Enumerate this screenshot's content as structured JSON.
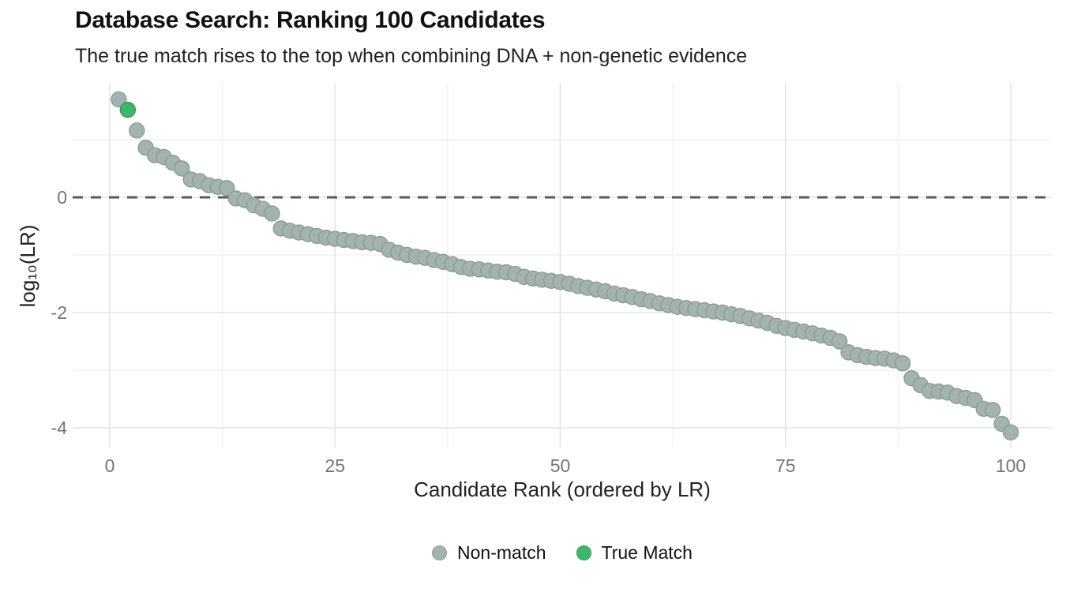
{
  "chart_data": {
    "type": "scatter",
    "title": "Database Search: Ranking 100 Candidates",
    "subtitle": "The true match rises to the top when combining DNA + non-genetic evidence",
    "xlabel": "Candidate Rank (ordered by LR)",
    "ylabel": "log₁₀(LR)",
    "x_tick_labels": [
      "0",
      "25",
      "50",
      "75",
      "100"
    ],
    "x_ticks": [
      0,
      25,
      50,
      75,
      100
    ],
    "x_minor_ticks": [
      12.5,
      37.5,
      62.5,
      87.5
    ],
    "y_tick_labels": [
      "0",
      "-2",
      "-4"
    ],
    "y_ticks": [
      0,
      -2,
      -4
    ],
    "y_minor_ticks": [
      1,
      -1,
      -3
    ],
    "xlim": [
      -4.1,
      104.6
    ],
    "ylim": [
      -4.34,
      1.99
    ],
    "grid": true,
    "reference_line_y": 0,
    "x_is_candidate_rank_1_to_100": true,
    "values": [
      1.7,
      1.52,
      1.16,
      0.86,
      0.73,
      0.7,
      0.6,
      0.5,
      0.31,
      0.28,
      0.21,
      0.18,
      0.16,
      -0.02,
      -0.05,
      -0.14,
      -0.2,
      -0.28,
      -0.54,
      -0.58,
      -0.61,
      -0.64,
      -0.67,
      -0.7,
      -0.72,
      -0.74,
      -0.76,
      -0.78,
      -0.79,
      -0.81,
      -0.91,
      -0.96,
      -1.0,
      -1.03,
      -1.05,
      -1.09,
      -1.12,
      -1.16,
      -1.21,
      -1.24,
      -1.25,
      -1.27,
      -1.29,
      -1.3,
      -1.33,
      -1.38,
      -1.41,
      -1.43,
      -1.45,
      -1.47,
      -1.5,
      -1.54,
      -1.57,
      -1.6,
      -1.63,
      -1.67,
      -1.7,
      -1.73,
      -1.77,
      -1.8,
      -1.84,
      -1.87,
      -1.9,
      -1.92,
      -1.94,
      -1.96,
      -1.98,
      -2.0,
      -2.03,
      -2.06,
      -2.1,
      -2.14,
      -2.18,
      -2.23,
      -2.27,
      -2.3,
      -2.33,
      -2.36,
      -2.4,
      -2.44,
      -2.5,
      -2.69,
      -2.74,
      -2.77,
      -2.79,
      -2.8,
      -2.83,
      -2.88,
      -3.14,
      -3.26,
      -3.36,
      -3.37,
      -3.39,
      -3.45,
      -3.48,
      -3.52,
      -3.67,
      -3.69,
      -3.93,
      -4.08
    ],
    "true_match_rank": 2,
    "legend": [
      {
        "label": "Non-match",
        "color": "#a5b3b0",
        "stroke": "#8a9c98"
      },
      {
        "label": "True Match",
        "color": "#42b46c",
        "stroke": "#2d9c58"
      }
    ],
    "colors": {
      "non_match_fill": "#a5b3b0",
      "non_match_stroke": "#8a9c98",
      "true_match_fill": "#42b46c",
      "true_match_stroke": "#2d9c58",
      "reference_line": "#595959",
      "grid_major": "#e4e4e4",
      "grid_minor": "#f1f1f1",
      "tick_label": "#757575",
      "text": "#222222",
      "title": "#111111"
    },
    "legend_position": "bottom-center"
  }
}
